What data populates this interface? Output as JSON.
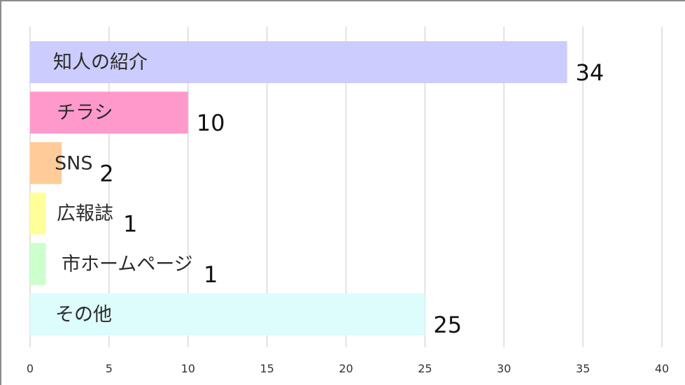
{
  "chart_data": {
    "type": "bar",
    "orientation": "horizontal",
    "categories": [
      "知人の紹介",
      "チラシ",
      "SNS",
      "広報誌",
      "市ホームページ",
      "その他"
    ],
    "values": [
      34,
      10,
      2,
      1,
      1,
      25
    ],
    "colors": [
      "#ccccff",
      "#ff99cc",
      "#ffcc99",
      "#ffff99",
      "#ccffcc",
      "#ddfcfc"
    ],
    "xlim": [
      0,
      40
    ],
    "xticks": [
      "0",
      "5",
      "10",
      "15",
      "20",
      "25",
      "30",
      "35",
      "40"
    ],
    "grid": true,
    "gridline_color": "#d9d9d9",
    "value_labels": [
      "34",
      "10",
      "2",
      "1",
      "1",
      "25"
    ],
    "title": "",
    "xlabel": "",
    "ylabel": ""
  }
}
